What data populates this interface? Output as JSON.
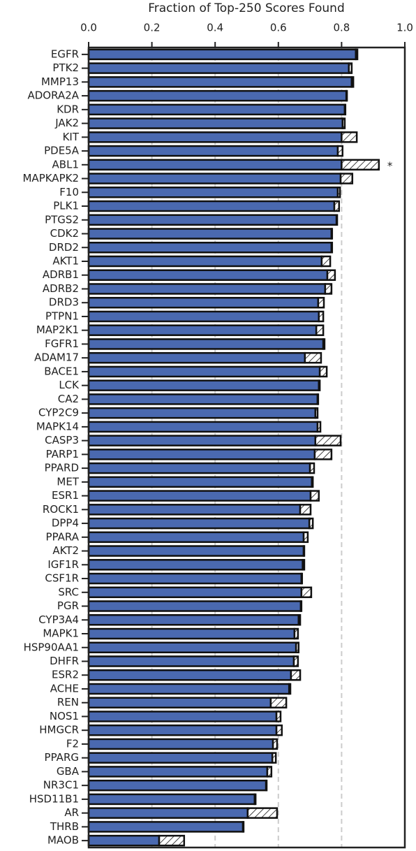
{
  "chart_data": {
    "type": "hbar-stacked",
    "xlabel": "Fraction of Top-250 Scores Found",
    "categories": [
      "EGFR",
      "PTK2",
      "MMP13",
      "ADORA2A",
      "KDR",
      "JAK2",
      "KIT",
      "PDE5A",
      "ABL1",
      "MAPKAPK2",
      "F10",
      "PLK1",
      "PTGS2",
      "CDK2",
      "DRD2",
      "AKT1",
      "ADRB1",
      "ADRB2",
      "DRD3",
      "PTPN1",
      "MAP2K1",
      "FGFR1",
      "ADAM17",
      "BACE1",
      "LCK",
      "CA2",
      "CYP2C9",
      "MAPK14",
      "CASP3",
      "PARP1",
      "PPARD",
      "MET",
      "ESR1",
      "ROCK1",
      "DPP4",
      "PPARA",
      "AKT2",
      "IGF1R",
      "CSF1R",
      "SRC",
      "PGR",
      "CYP3A4",
      "MAPK1",
      "HSP90AA1",
      "DHFR",
      "ESR2",
      "ACHE",
      "REN",
      "NOS1",
      "HMGCR",
      "F2",
      "PPARG",
      "GBA",
      "NR3C1",
      "HSD11B1",
      "AR",
      "THRB",
      "MAOB"
    ],
    "series": [
      {
        "color": "#4a69b0",
        "hatch": false,
        "values": [
          0.845,
          0.823,
          0.832,
          0.815,
          0.81,
          0.803,
          0.8,
          0.788,
          0.8,
          0.797,
          0.788,
          0.777,
          0.784,
          0.768,
          0.768,
          0.737,
          0.755,
          0.748,
          0.726,
          0.728,
          0.72,
          0.742,
          0.684,
          0.731,
          0.728,
          0.724,
          0.717,
          0.724,
          0.717,
          0.715,
          0.7,
          0.706,
          0.702,
          0.669,
          0.698,
          0.68,
          0.68,
          0.677,
          0.673,
          0.673,
          0.671,
          0.664,
          0.651,
          0.656,
          0.649,
          0.64,
          0.634,
          0.576,
          0.594,
          0.594,
          0.583,
          0.581,
          0.565,
          0.561,
          0.525,
          0.503,
          0.488,
          0.223
        ]
      },
      {
        "color": "#ffffff",
        "hatch": true,
        "values": [
          0.005,
          0.009,
          0.005,
          0.002,
          0.002,
          0.007,
          0.048,
          0.015,
          0.118,
          0.037,
          0.007,
          0.015,
          0.002,
          0.002,
          0.002,
          0.027,
          0.024,
          0.02,
          0.018,
          0.014,
          0.022,
          0.004,
          0.051,
          0.022,
          0.003,
          0.002,
          0.007,
          0.009,
          0.08,
          0.053,
          0.013,
          0.003,
          0.026,
          0.033,
          0.011,
          0.013,
          0.002,
          0.005,
          0.002,
          0.031,
          0.002,
          0.005,
          0.011,
          0.008,
          0.013,
          0.029,
          0.004,
          0.049,
          0.013,
          0.017,
          0.013,
          0.011,
          0.013,
          0.002,
          0.003,
          0.093,
          0.002,
          0.079
        ]
      }
    ],
    "xlim": [
      0,
      1
    ],
    "xticks": [
      {
        "value": 0,
        "label": "0.0"
      },
      0.2,
      0.4,
      0.6,
      0.8,
      {
        "value": 1,
        "label": "1.0"
      }
    ],
    "grid": true,
    "annotation": {
      "text": "*",
      "category": "ABL1"
    }
  }
}
